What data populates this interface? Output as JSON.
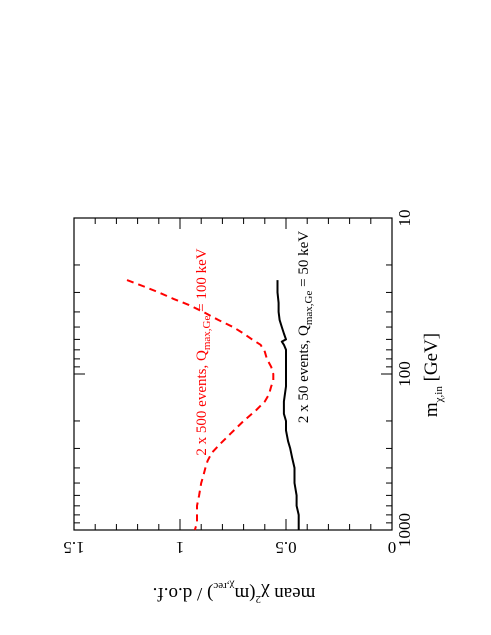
{
  "chart_data": {
    "type": "line",
    "rotated_view": "figure rotated 90 degrees clockwise; x axis (log) runs down the right edge, y axis runs across the bottom",
    "xlabel": {
      "main": "m",
      "sub": "χ,in",
      "tail": " [GeV]"
    },
    "ylabel": {
      "pre": "mean χ",
      "sup": "2",
      "mid": "(m",
      "sub": "χ,rec",
      "post": ") / d.o.f."
    },
    "x_scale": "log",
    "xlim": [
      10,
      1000
    ],
    "ylim": [
      0,
      1.5
    ],
    "x_ticks": [
      10,
      100,
      1000
    ],
    "x_tick_labels": [
      "10",
      "100",
      "1000"
    ],
    "y_ticks": [
      0,
      0.5,
      1,
      1.5
    ],
    "y_tick_labels": [
      "0",
      "0.5",
      "1",
      "1.5"
    ],
    "grid": false,
    "series": [
      {
        "label": {
          "pre": "2 x 500 events, Q",
          "sub": "max,Ge",
          "post": " = 100 keV"
        },
        "color": "#ff0000",
        "style": "dashed",
        "x": [
          25,
          27.5,
          30,
          33,
          36,
          40,
          45,
          50,
          55,
          60,
          65,
          72,
          80,
          90,
          100,
          110,
          120,
          135,
          150,
          170,
          200,
          240,
          280,
          320,
          360,
          400,
          450,
          500,
          600,
          700,
          800,
          900,
          1000
        ],
        "y": [
          1.25,
          1.17,
          1.1,
          1.03,
          0.96,
          0.89,
          0.82,
          0.75,
          0.7,
          0.66,
          0.62,
          0.6,
          0.59,
          0.57,
          0.56,
          0.56,
          0.57,
          0.58,
          0.6,
          0.64,
          0.7,
          0.76,
          0.81,
          0.85,
          0.87,
          0.88,
          0.89,
          0.9,
          0.91,
          0.92,
          0.92,
          0.92,
          0.93
        ]
      },
      {
        "label": {
          "pre": "2 x 50 events, Q",
          "sub": "max,Ge",
          "post": " = 50 keV"
        },
        "color": "#000000",
        "style": "solid",
        "x": [
          25,
          30,
          35,
          40,
          45,
          50,
          55,
          60,
          62,
          65,
          70,
          80,
          90,
          100,
          120,
          150,
          180,
          200,
          230,
          270,
          300,
          350,
          400,
          500,
          600,
          700,
          800,
          900,
          1000
        ],
        "y": [
          0.54,
          0.54,
          0.535,
          0.535,
          0.53,
          0.52,
          0.51,
          0.5,
          0.52,
          0.51,
          0.5,
          0.5,
          0.5,
          0.5,
          0.5,
          0.51,
          0.51,
          0.5,
          0.5,
          0.49,
          0.48,
          0.47,
          0.46,
          0.46,
          0.45,
          0.45,
          0.44,
          0.44,
          0.44
        ]
      }
    ]
  }
}
